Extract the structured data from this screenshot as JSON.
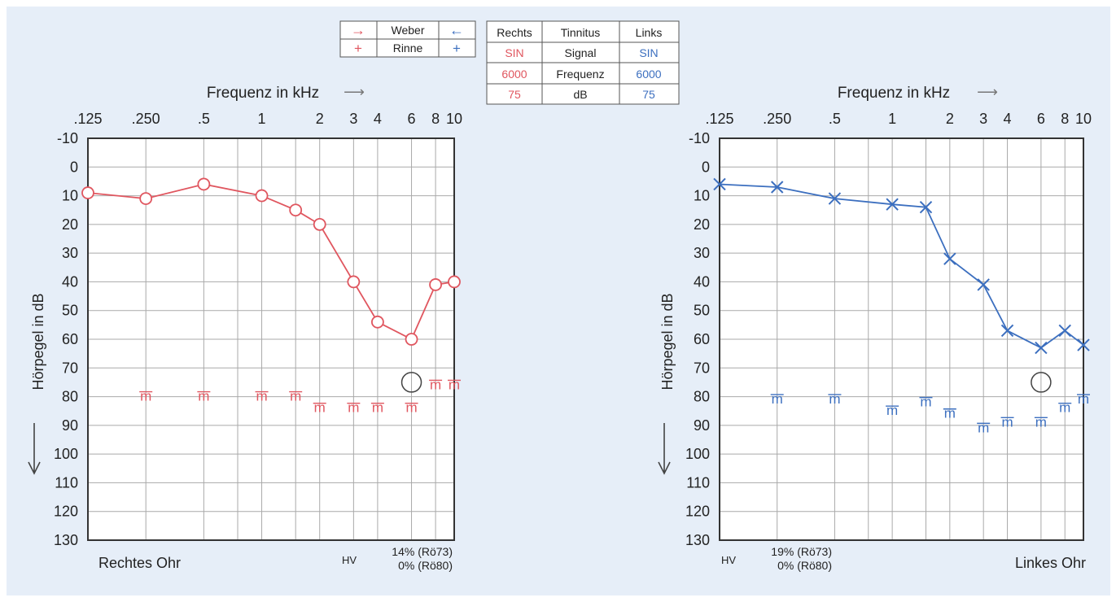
{
  "colors": {
    "background": "#e6eef8",
    "right_ear": "#e0565f",
    "left_ear": "#3c6fbf",
    "grid": "#a9a9a9",
    "frame": "#333333"
  },
  "legend_weber_rinne": {
    "weber_label": "Weber",
    "rinne_label": "Rinne",
    "right_weber_symbol": "→",
    "left_weber_symbol": "←",
    "right_rinne_symbol": "+",
    "left_rinne_symbol": "+"
  },
  "tinnitus_table": {
    "headers": [
      "Rechts",
      "Tinnitus",
      "Links"
    ],
    "rows": [
      [
        "SIN",
        "Signal",
        "SIN"
      ],
      [
        "6000",
        "Frequenz",
        "6000"
      ],
      [
        "75",
        "dB",
        "75"
      ]
    ]
  },
  "chart_data": [
    {
      "type": "line",
      "ear": "right",
      "title": "Rechtes Ohr",
      "xlabel": "Frequenz in kHz",
      "xlabel_arrow": "⟶",
      "ylabel": "Hörpegel in dB",
      "ylim": [
        -10,
        130
      ],
      "y_ticks": [
        -10,
        0,
        10,
        20,
        30,
        40,
        50,
        60,
        70,
        80,
        90,
        100,
        110,
        120,
        130
      ],
      "x_ticks": [
        {
          "label": ".125",
          "khz": 0.125
        },
        {
          "label": ".250",
          "khz": 0.25
        },
        {
          "label": ".5",
          "khz": 0.5
        },
        {
          "label": "1",
          "khz": 1
        },
        {
          "label": "2",
          "khz": 2
        },
        {
          "label": "3",
          "khz": 3
        },
        {
          "label": "4",
          "khz": 4
        },
        {
          "label": "6",
          "khz": 6
        },
        {
          "label": "8",
          "khz": 8
        },
        {
          "label": "10",
          "khz": 10
        }
      ],
      "grid_khz": [
        0.125,
        0.25,
        0.5,
        0.75,
        1,
        1.5,
        2,
        3,
        4,
        6,
        8,
        10
      ],
      "x_scale": "log",
      "grid": true,
      "air_conduction": {
        "symbol": "circle",
        "points": [
          {
            "khz": 0.125,
            "db": 9
          },
          {
            "khz": 0.25,
            "db": 11
          },
          {
            "khz": 0.5,
            "db": 6
          },
          {
            "khz": 1,
            "db": 10
          },
          {
            "khz": 1.5,
            "db": 15
          },
          {
            "khz": 2,
            "db": 20
          },
          {
            "khz": 3,
            "db": 40
          },
          {
            "khz": 4,
            "db": 54
          },
          {
            "khz": 6,
            "db": 60
          },
          {
            "khz": 8,
            "db": 41
          },
          {
            "khz": 10,
            "db": 40
          }
        ]
      },
      "uncomfortable_level": {
        "symbol": "m",
        "points": [
          {
            "khz": 0.25,
            "db": 80
          },
          {
            "khz": 0.5,
            "db": 80
          },
          {
            "khz": 1,
            "db": 80
          },
          {
            "khz": 1.5,
            "db": 80
          },
          {
            "khz": 2,
            "db": 84
          },
          {
            "khz": 3,
            "db": 84
          },
          {
            "khz": 4,
            "db": 84
          },
          {
            "khz": 6,
            "db": 84
          },
          {
            "khz": 8,
            "db": 76
          },
          {
            "khz": 10,
            "db": 76
          }
        ]
      },
      "tinnitus_marker": {
        "khz": 6,
        "db": 75
      },
      "ear_label": "Rechtes Ohr",
      "hv_label": "HV",
      "hv_line1": "14% (Rö73)",
      "hv_line2": "0% (Rö80)"
    },
    {
      "type": "line",
      "ear": "left",
      "title": "Linkes Ohr",
      "xlabel": "Frequenz in kHz",
      "xlabel_arrow": "⟶",
      "ylabel": "Hörpegel in dB",
      "ylim": [
        -10,
        130
      ],
      "y_ticks": [
        -10,
        0,
        10,
        20,
        30,
        40,
        50,
        60,
        70,
        80,
        90,
        100,
        110,
        120,
        130
      ],
      "x_ticks": [
        {
          "label": ".125",
          "khz": 0.125
        },
        {
          "label": ".250",
          "khz": 0.25
        },
        {
          "label": ".5",
          "khz": 0.5
        },
        {
          "label": "1",
          "khz": 1
        },
        {
          "label": "2",
          "khz": 2
        },
        {
          "label": "3",
          "khz": 3
        },
        {
          "label": "4",
          "khz": 4
        },
        {
          "label": "6",
          "khz": 6
        },
        {
          "label": "8",
          "khz": 8
        },
        {
          "label": "10",
          "khz": 10
        }
      ],
      "grid_khz": [
        0.125,
        0.25,
        0.5,
        0.75,
        1,
        1.5,
        2,
        3,
        4,
        6,
        8,
        10
      ],
      "x_scale": "log",
      "grid": true,
      "air_conduction": {
        "symbol": "cross",
        "points": [
          {
            "khz": 0.125,
            "db": 6
          },
          {
            "khz": 0.25,
            "db": 7
          },
          {
            "khz": 0.5,
            "db": 11
          },
          {
            "khz": 1,
            "db": 13
          },
          {
            "khz": 1.5,
            "db": 14
          },
          {
            "khz": 2,
            "db": 32
          },
          {
            "khz": 3,
            "db": 41
          },
          {
            "khz": 4,
            "db": 57
          },
          {
            "khz": 6,
            "db": 63
          },
          {
            "khz": 8,
            "db": 57
          },
          {
            "khz": 10,
            "db": 62
          }
        ]
      },
      "uncomfortable_level": {
        "symbol": "m",
        "points": [
          {
            "khz": 0.25,
            "db": 81
          },
          {
            "khz": 0.5,
            "db": 81
          },
          {
            "khz": 1,
            "db": 85
          },
          {
            "khz": 1.5,
            "db": 82
          },
          {
            "khz": 2,
            "db": 86
          },
          {
            "khz": 3,
            "db": 91
          },
          {
            "khz": 4,
            "db": 89
          },
          {
            "khz": 6,
            "db": 89
          },
          {
            "khz": 8,
            "db": 84
          },
          {
            "khz": 10,
            "db": 81
          }
        ]
      },
      "tinnitus_marker": {
        "khz": 6,
        "db": 75
      },
      "ear_label": "Linkes Ohr",
      "hv_label": "HV",
      "hv_line1": "19% (Rö73)",
      "hv_line2": "0% (Rö80)"
    }
  ]
}
